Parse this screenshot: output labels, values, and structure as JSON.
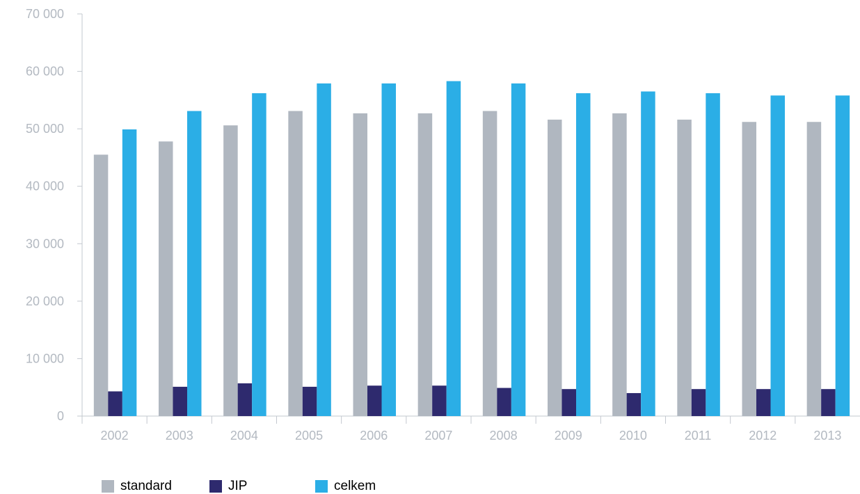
{
  "chart_data": {
    "type": "bar",
    "categories": [
      "2002",
      "2003",
      "2004",
      "2005",
      "2006",
      "2007",
      "2008",
      "2009",
      "2010",
      "2011",
      "2012",
      "2013"
    ],
    "series": [
      {
        "name": "standard",
        "color": "#b0b7c0",
        "values": [
          45500,
          47800,
          50600,
          53100,
          52700,
          52700,
          53100,
          51600,
          52700,
          51600,
          51200,
          51200
        ]
      },
      {
        "name": "JIP",
        "color": "#2e2a6e",
        "values": [
          4300,
          5100,
          5700,
          5100,
          5300,
          5300,
          4900,
          4700,
          4000,
          4700,
          4700,
          4700
        ]
      },
      {
        "name": "celkem",
        "color": "#2baee6",
        "values": [
          49900,
          53100,
          56200,
          57900,
          57900,
          58300,
          57900,
          56200,
          56500,
          56200,
          55800,
          55800
        ]
      }
    ],
    "ylim": [
      0,
      70000
    ],
    "yticks": [
      "0",
      "10 000",
      "20 000",
      "30 000",
      "40 000",
      "50 000",
      "60 000",
      "70 000"
    ],
    "ytick_values": [
      0,
      10000,
      20000,
      30000,
      40000,
      50000,
      60000,
      70000
    ],
    "grid": false,
    "legend": "bottom-left",
    "title": "",
    "xlabel": "",
    "ylabel": ""
  }
}
